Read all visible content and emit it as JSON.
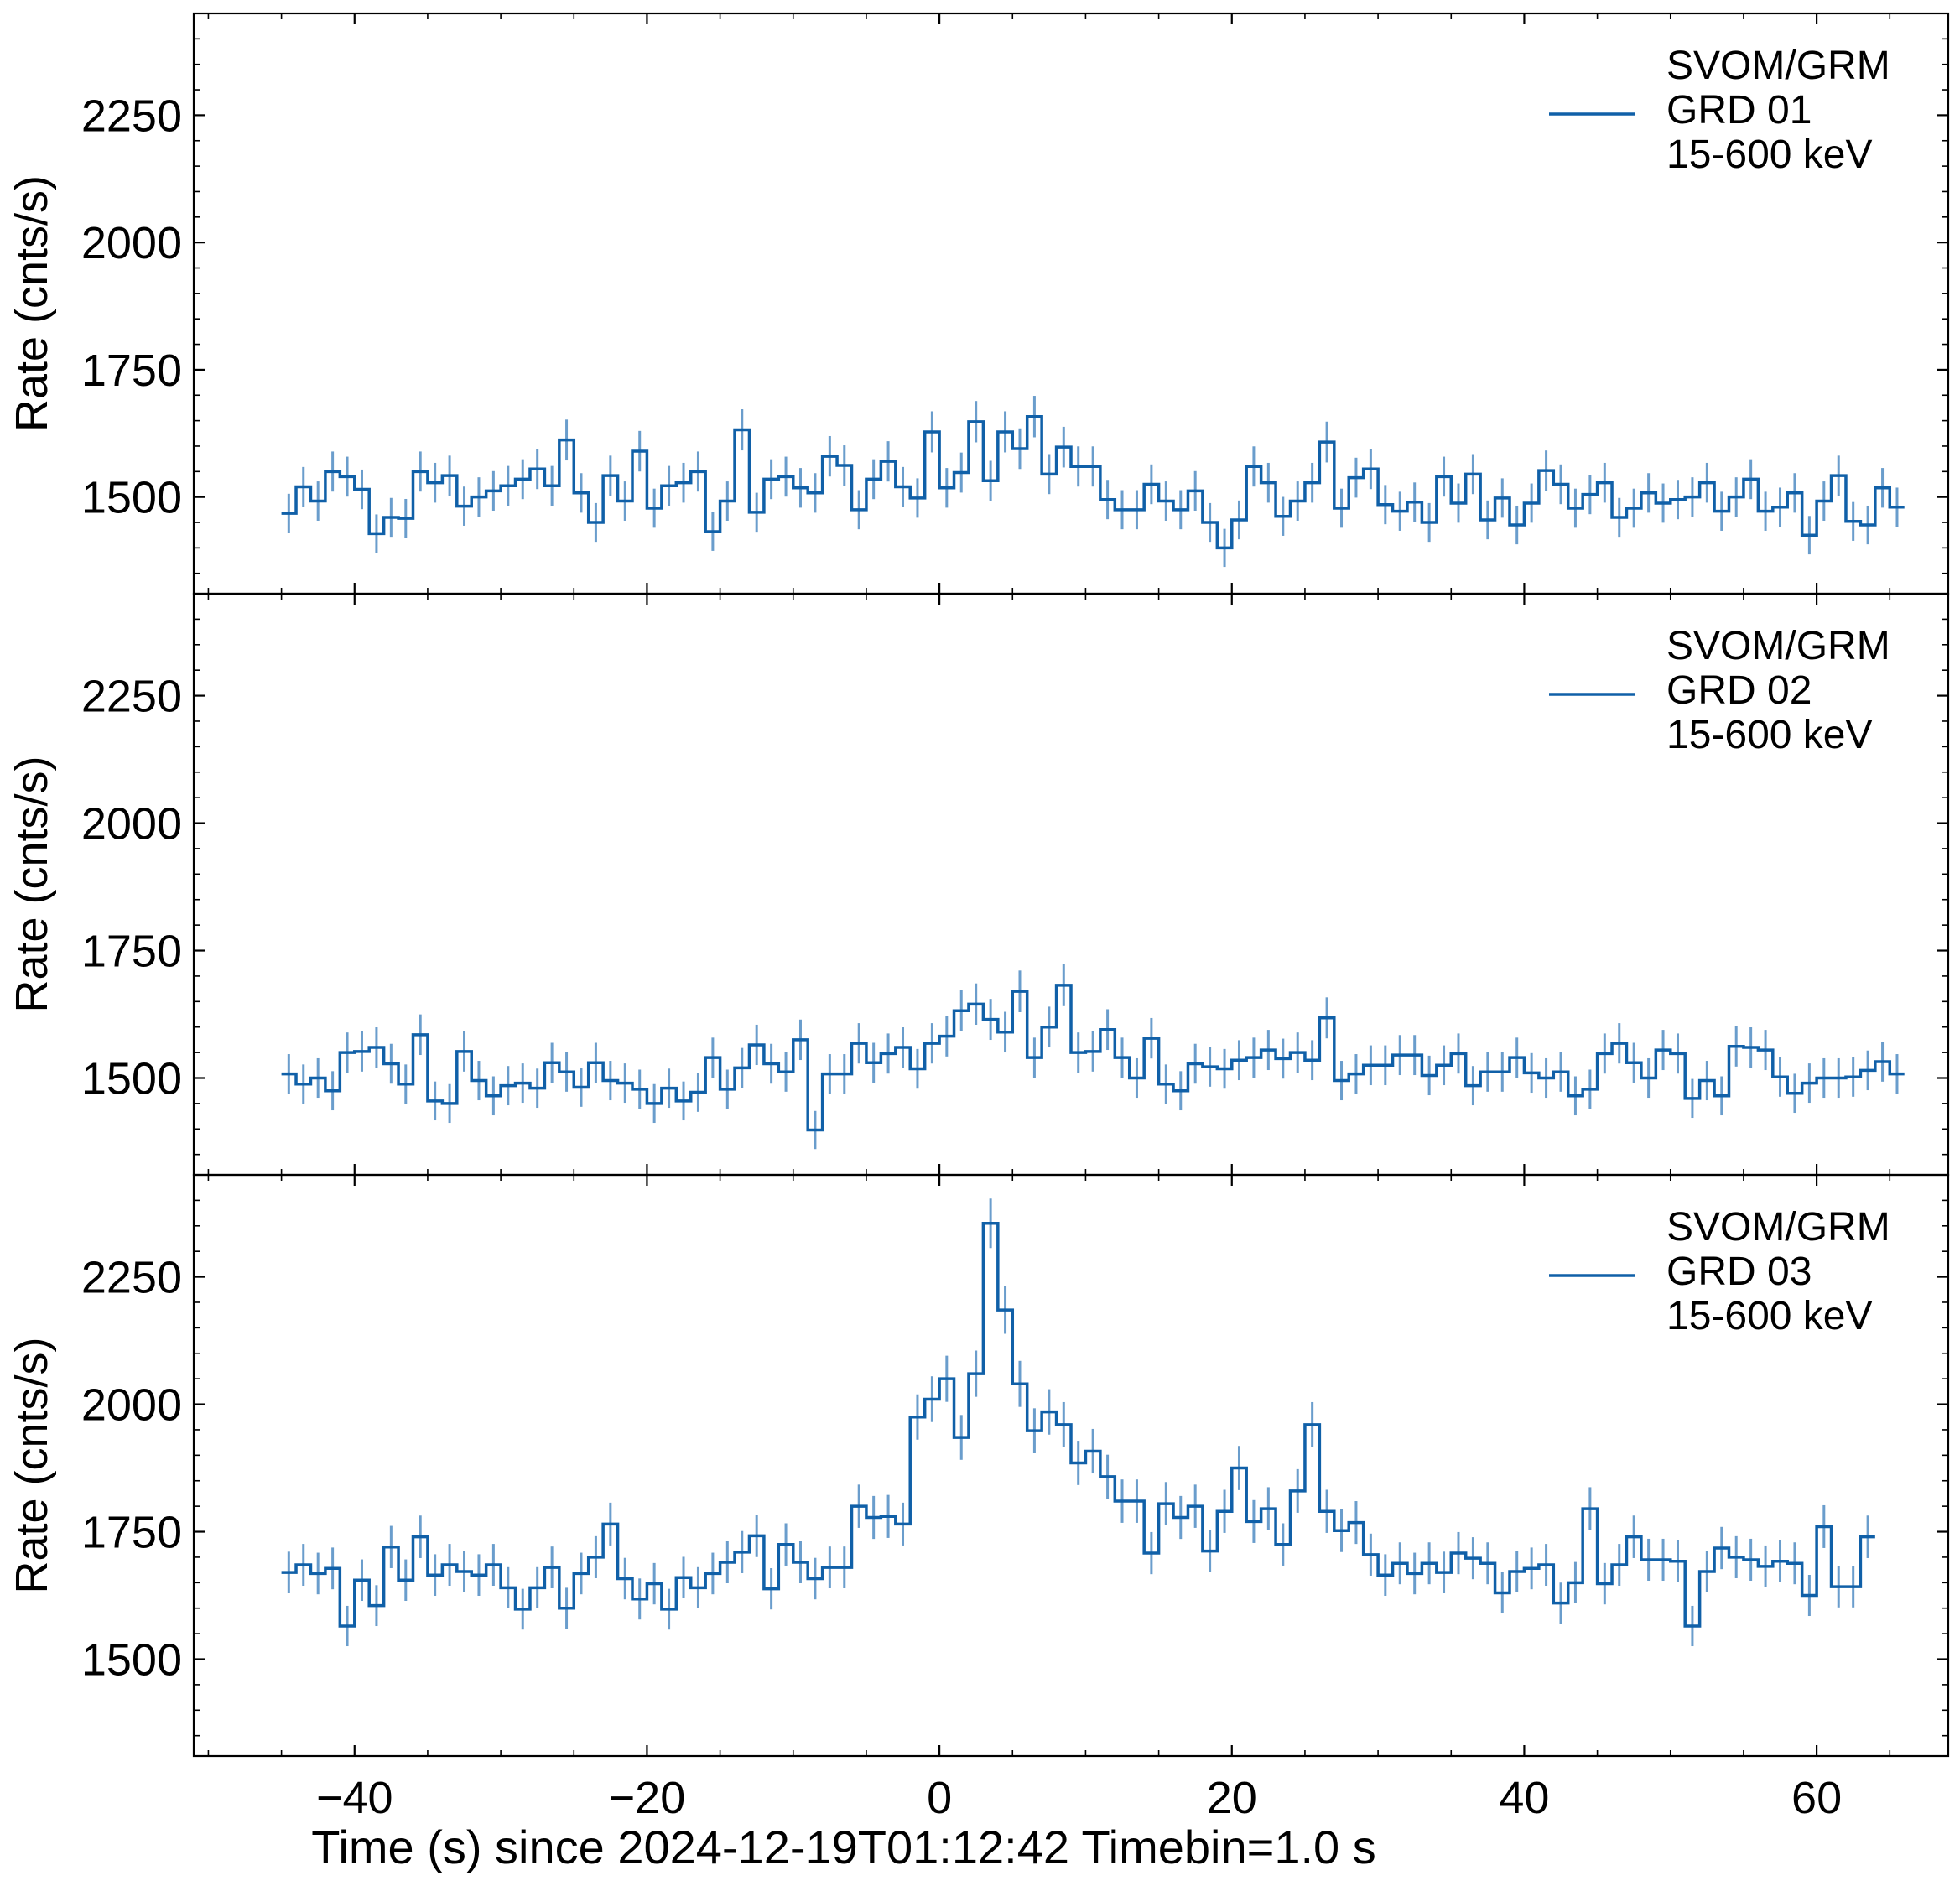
{
  "figure": {
    "xlabel": "Time (s) since 2024-12-19T01:12:42 Timebin=1.0 s",
    "ylabel": "Rate (cnts/s)"
  },
  "colors": {
    "line": "#1060a8",
    "errorbar": "#6a9dcc",
    "axes": "#000000"
  },
  "chart_data": [
    {
      "type": "line",
      "legend": [
        "SVOM/GRM",
        "GRD 01",
        "15-600 keV"
      ],
      "legend_position": "top-right",
      "xlim": [
        -51,
        69
      ],
      "ylim": [
        1310,
        2450
      ],
      "xticks": [
        -40,
        -20,
        0,
        20,
        40,
        60
      ],
      "yticks": [
        1500,
        1750,
        2000,
        2250
      ],
      "x_start": -45,
      "bin_width": 1.0,
      "values": [
        1468,
        1520,
        1492,
        1550,
        1540,
        1515,
        1428,
        1460,
        1458,
        1550,
        1528,
        1542,
        1482,
        1500,
        1512,
        1522,
        1535,
        1555,
        1522,
        1612,
        1508,
        1450,
        1542,
        1492,
        1590,
        1478,
        1522,
        1528,
        1550,
        1432,
        1492,
        1632,
        1470,
        1535,
        1540,
        1518,
        1508,
        1580,
        1562,
        1475,
        1535,
        1570,
        1520,
        1498,
        1628,
        1518,
        1548,
        1648,
        1532,
        1628,
        1595,
        1658,
        1545,
        1598,
        1560,
        1560,
        1495,
        1475,
        1475,
        1525,
        1492,
        1475,
        1512,
        1450,
        1400,
        1455,
        1560,
        1528,
        1462,
        1492,
        1528,
        1608,
        1478,
        1538,
        1555,
        1485,
        1472,
        1490,
        1450,
        1540,
        1488,
        1545,
        1455,
        1498,
        1445,
        1488,
        1552,
        1525,
        1478,
        1505,
        1528,
        1460,
        1478,
        1508,
        1488,
        1495,
        1500,
        1528,
        1472,
        1500,
        1535,
        1472,
        1480,
        1508,
        1425,
        1492,
        1542,
        1452,
        1445,
        1518,
        1480
      ]
    },
    {
      "type": "line",
      "legend": [
        "SVOM/GRM",
        "GRD 02",
        "15-600 keV"
      ],
      "legend_position": "top-right",
      "xlim": [
        -51,
        69
      ],
      "ylim": [
        1310,
        2450
      ],
      "xticks": [
        -40,
        -20,
        0,
        20,
        40,
        60
      ],
      "yticks": [
        1500,
        1750,
        2000,
        2250
      ],
      "x_start": -45,
      "bin_width": 1.0,
      "values": [
        1508,
        1488,
        1500,
        1475,
        1550,
        1552,
        1560,
        1528,
        1488,
        1585,
        1455,
        1450,
        1552,
        1495,
        1465,
        1485,
        1490,
        1480,
        1530,
        1512,
        1482,
        1530,
        1495,
        1490,
        1478,
        1450,
        1480,
        1455,
        1472,
        1540,
        1478,
        1520,
        1565,
        1528,
        1512,
        1575,
        1398,
        1508,
        1508,
        1568,
        1530,
        1548,
        1560,
        1518,
        1568,
        1582,
        1632,
        1645,
        1615,
        1590,
        1670,
        1540,
        1600,
        1682,
        1550,
        1552,
        1595,
        1540,
        1500,
        1578,
        1488,
        1475,
        1528,
        1522,
        1518,
        1535,
        1540,
        1555,
        1538,
        1550,
        1535,
        1618,
        1495,
        1508,
        1525,
        1525,
        1545,
        1545,
        1505,
        1525,
        1548,
        1485,
        1512,
        1512,
        1540,
        1510,
        1500,
        1512,
        1465,
        1478,
        1548,
        1568,
        1530,
        1500,
        1555,
        1548,
        1460,
        1495,
        1465,
        1562,
        1560,
        1555,
        1502,
        1470,
        1490,
        1500,
        1500,
        1502,
        1515,
        1532,
        1508
      ]
    },
    {
      "type": "line",
      "legend": [
        "SVOM/GRM",
        "GRD 03",
        "15-600 keV"
      ],
      "legend_position": "top-right",
      "xlim": [
        -51,
        69
      ],
      "ylim": [
        1310,
        2450
      ],
      "xticks": [
        -40,
        -20,
        0,
        20,
        40,
        60
      ],
      "yticks": [
        1500,
        1750,
        2000,
        2250
      ],
      "x_start": -45,
      "bin_width": 1.0,
      "values": [
        1670,
        1685,
        1668,
        1678,
        1565,
        1655,
        1605,
        1720,
        1655,
        1740,
        1665,
        1685,
        1672,
        1665,
        1685,
        1640,
        1598,
        1640,
        1680,
        1600,
        1668,
        1700,
        1765,
        1658,
        1618,
        1648,
        1598,
        1660,
        1640,
        1668,
        1690,
        1710,
        1742,
        1638,
        1725,
        1690,
        1658,
        1680,
        1680,
        1800,
        1778,
        1780,
        1765,
        1975,
        2010,
        2050,
        1935,
        2060,
        2355,
        2185,
        2040,
        1948,
        1985,
        1960,
        1885,
        1908,
        1858,
        1810,
        1810,
        1708,
        1805,
        1778,
        1800,
        1712,
        1790,
        1875,
        1770,
        1795,
        1725,
        1830,
        1960,
        1790,
        1752,
        1768,
        1705,
        1665,
        1688,
        1668,
        1688,
        1670,
        1708,
        1698,
        1688,
        1630,
        1672,
        1678,
        1685,
        1610,
        1650,
        1795,
        1648,
        1685,
        1740,
        1695,
        1695,
        1692,
        1565,
        1672,
        1718,
        1700,
        1695,
        1682,
        1692,
        1688,
        1625,
        1760,
        1642,
        1642,
        1740
      ]
    }
  ]
}
